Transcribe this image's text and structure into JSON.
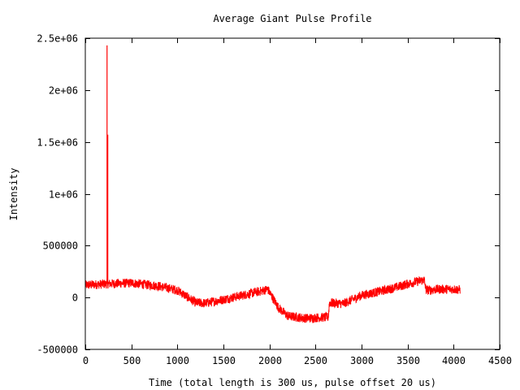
{
  "chart_data": {
    "type": "line",
    "title": "Average Giant Pulse Profile",
    "xlabel": "Time (total length is 300 us, pulse offset 20 us)",
    "ylabel": "Intensity",
    "xlim": [
      0,
      4500
    ],
    "ylim": [
      -500000,
      2500000
    ],
    "x_ticks": [
      0,
      500,
      1000,
      1500,
      2000,
      2500,
      3000,
      3500,
      4000,
      4500
    ],
    "x_tick_labels": [
      "0",
      "500",
      "1000",
      "1500",
      "2000",
      "2500",
      "3000",
      "3500",
      "4000",
      "4500"
    ],
    "y_ticks": [
      -500000,
      0,
      500000,
      1000000,
      1500000,
      2000000,
      2500000
    ],
    "y_tick_labels": [
      "-500000",
      "0",
      "500000",
      "1e+06",
      "1.5e+06",
      "2e+06",
      "2.5e+06"
    ],
    "grid": false,
    "series": [
      {
        "color": "#ff0000",
        "noise_amplitude": 45000,
        "baseline": [
          [
            0,
            120000
          ],
          [
            200,
            130000
          ],
          [
            500,
            140000
          ],
          [
            800,
            110000
          ],
          [
            1000,
            70000
          ],
          [
            1100,
            10000
          ],
          [
            1200,
            -50000
          ],
          [
            1300,
            -55000
          ],
          [
            1500,
            -20000
          ],
          [
            1700,
            20000
          ],
          [
            1900,
            60000
          ],
          [
            1980,
            80000
          ],
          [
            2100,
            -100000
          ],
          [
            2200,
            -180000
          ],
          [
            2400,
            -200000
          ],
          [
            2600,
            -190000
          ],
          [
            2640,
            -190000
          ],
          [
            2650,
            -50000
          ],
          [
            2800,
            -60000
          ],
          [
            3000,
            20000
          ],
          [
            3300,
            80000
          ],
          [
            3500,
            130000
          ],
          [
            3680,
            170000
          ],
          [
            3700,
            70000
          ],
          [
            3850,
            80000
          ],
          [
            4000,
            80000
          ],
          [
            4070,
            75000
          ]
        ],
        "spikes": [
          {
            "x": 236,
            "y": 2430000
          },
          {
            "x": 244,
            "y": 1570000
          }
        ],
        "x_end": 4070
      }
    ]
  }
}
